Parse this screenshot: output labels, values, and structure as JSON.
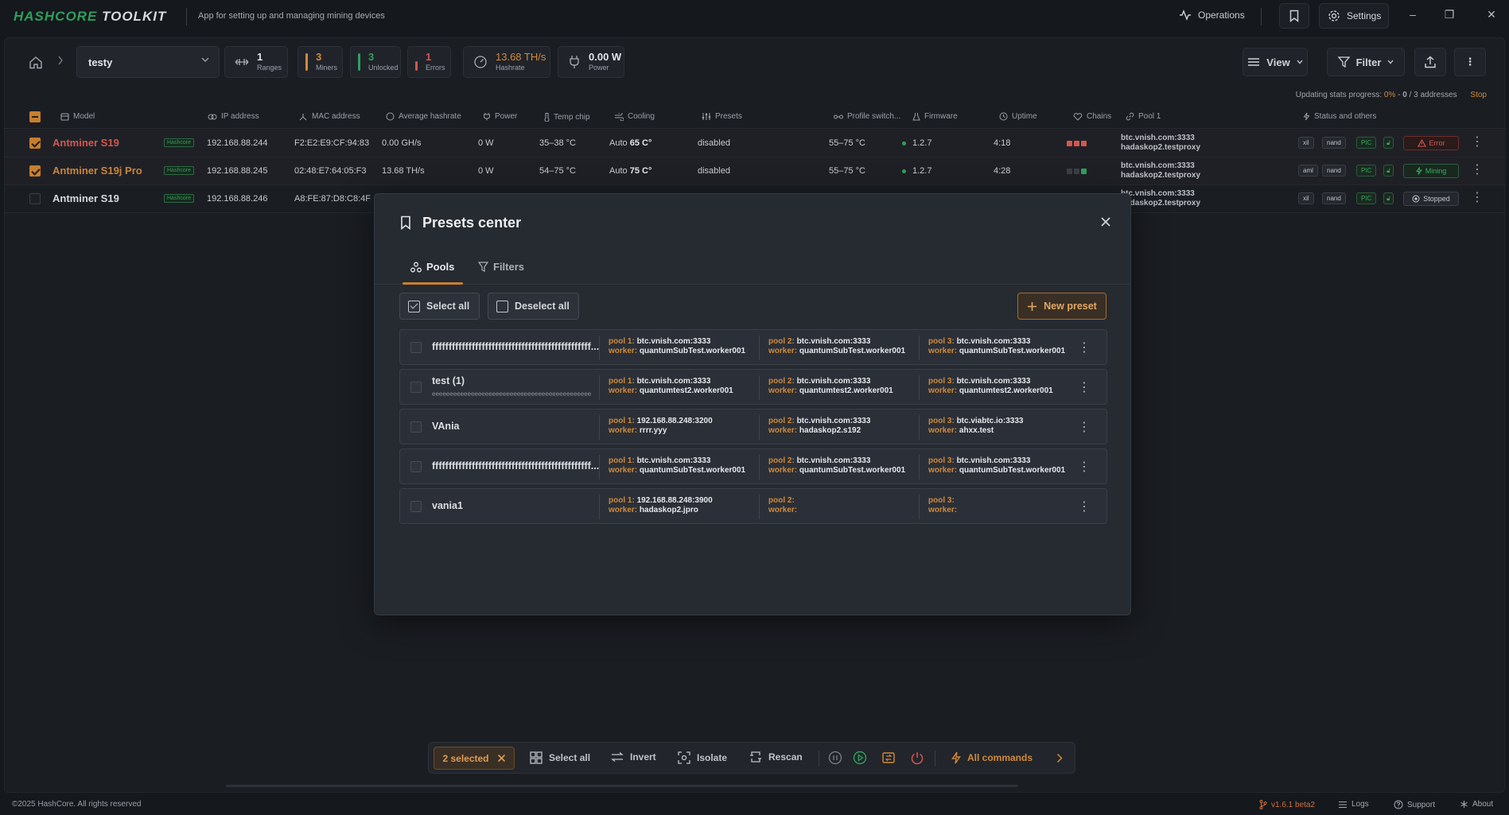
{
  "app": {
    "logo_main": "HASHCORE",
    "logo_suffix": "TOOLKIT",
    "tagline": "App for setting up and managing mining devices",
    "operations_label": "Operations",
    "settings_label": "Settings"
  },
  "toolbar": {
    "group_name": "testy",
    "stats": [
      {
        "value": "1",
        "label": "Ranges",
        "color": "#9aa0a8"
      },
      {
        "value": "3",
        "label": "Miners",
        "color": "#d08a3a"
      },
      {
        "value": "3",
        "label": "Unlocked",
        "color": "#2fa05a"
      },
      {
        "value": "1",
        "label": "Errors",
        "color": "#d1584f"
      }
    ],
    "hashrate_value": "13.68 TH/s",
    "hashrate_label": "Hashrate",
    "power_value": "0.00 W",
    "power_label": "Power",
    "view_label": "View",
    "filter_label": "Filter"
  },
  "progress": {
    "prefix": "Updating stats progress:",
    "percent": "0%",
    "count": "0",
    "total": "/ 3 addresses",
    "stop_label": "Stop"
  },
  "table": {
    "headers": {
      "model": "Model",
      "ip": "IP address",
      "mac": "MAC address",
      "hashrate": "Average hashrate",
      "power": "Power",
      "temp": "Temp chip",
      "cooling": "Cooling",
      "presets": "Presets",
      "profile": "Profile switch...",
      "firmware": "Firmware",
      "uptime": "Uptime",
      "chains": "Chains",
      "pool1": "Pool 1",
      "status": "Status and others"
    },
    "rows": [
      {
        "checked": true,
        "model": "Antminer S19",
        "badge": "Hashcore",
        "ip": "192.168.88.244",
        "mac": "F2:E2:E9:CF:94:83",
        "hashrate": "0.00 GH/s",
        "power": "0 W",
        "temp": "35–38 °C",
        "cooling_mode": "Auto",
        "cooling_temp": "65 C°",
        "presets": "disabled",
        "profile": "55–75 °C",
        "firmware": "1.2.7",
        "uptime": "4:18",
        "pool_url": "btc.vnish.com:3333",
        "pool_worker": "hadaskop2.testproxy",
        "tag1": "xil",
        "tag2": "nand",
        "tag3": "PIC",
        "status": "Error"
      },
      {
        "checked": true,
        "model": "Antminer S19j Pro",
        "badge": "Hashcore",
        "ip": "192.168.88.245",
        "mac": "02:48:E7:64:05:F3",
        "hashrate": "13.68 TH/s",
        "power": "0 W",
        "temp": "54–75 °C",
        "cooling_mode": "Auto",
        "cooling_temp": "75 C°",
        "presets": "disabled",
        "profile": "55–75 °C",
        "firmware": "1.2.7",
        "uptime": "4:28",
        "pool_url": "btc.vnish.com:3333",
        "pool_worker": "hadaskop2.testproxy",
        "tag1": "aml",
        "tag2": "nand",
        "tag3": "PIC",
        "status": "Mining"
      },
      {
        "checked": false,
        "model": "Antminer S19",
        "badge": "Hashcore",
        "ip": "192.168.88.246",
        "mac": "A8:FE:87:D8:C8:4F",
        "pool_url": "btc.vnish.com:3333",
        "pool_worker": "hadaskop2.testproxy",
        "tag1": "xil",
        "tag2": "nand",
        "tag3": "PIC",
        "status": "Stopped"
      }
    ]
  },
  "modal": {
    "title": "Presets center",
    "tabs": [
      "Pools",
      "Filters"
    ],
    "select_all": "Select all",
    "deselect_all": "Deselect all",
    "new_preset": "New preset",
    "presets": [
      {
        "name": "ffffffffffffffffffffffffffffffffffffffffffffffff...",
        "sub": "",
        "pools": [
          {
            "label": "pool 1:",
            "url": "btc.vnish.com:3333",
            "worker_label": "worker:",
            "worker": "quantumSubTest.worker001"
          },
          {
            "label": "pool 2:",
            "url": "btc.vnish.com:3333",
            "worker_label": "worker:",
            "worker": "quantumSubTest.worker001"
          },
          {
            "label": "pool 3:",
            "url": "btc.vnish.com:3333",
            "worker_label": "worker:",
            "worker": "quantumSubTest.worker001"
          }
        ]
      },
      {
        "name": "test (1)",
        "sub": "eeeeeeeeeeeeeeeeeeeeeeeeeeeeeeeeeeeeeeeeeeeeeeeeeeeeeeeee...",
        "pools": [
          {
            "label": "pool 1:",
            "url": "btc.vnish.com:3333",
            "worker_label": "worker:",
            "worker": "quantumtest2.worker001"
          },
          {
            "label": "pool 2:",
            "url": "btc.vnish.com:3333",
            "worker_label": "worker:",
            "worker": "quantumtest2.worker001"
          },
          {
            "label": "pool 3:",
            "url": "btc.vnish.com:3333",
            "worker_label": "worker:",
            "worker": "quantumtest2.worker001"
          }
        ]
      },
      {
        "name": "VAnia",
        "sub": "",
        "pools": [
          {
            "label": "pool 1:",
            "url": "192.168.88.248:3200",
            "worker_label": "worker:",
            "worker": "rrrr.yyy"
          },
          {
            "label": "pool 2:",
            "url": "btc.vnish.com:3333",
            "worker_label": "worker:",
            "worker": "hadaskop2.s192"
          },
          {
            "label": "pool 3:",
            "url": "btc.viabtc.io:3333",
            "worker_label": "worker:",
            "worker": "ahxx.test"
          }
        ]
      },
      {
        "name": "ffffffffffffffffffffffffffffffffffffffffffffffff...",
        "sub": "",
        "pools": [
          {
            "label": "pool 1:",
            "url": "btc.vnish.com:3333",
            "worker_label": "worker:",
            "worker": "quantumSubTest.worker001"
          },
          {
            "label": "pool 2:",
            "url": "btc.vnish.com:3333",
            "worker_label": "worker:",
            "worker": "quantumSubTest.worker001"
          },
          {
            "label": "pool 3:",
            "url": "btc.vnish.com:3333",
            "worker_label": "worker:",
            "worker": "quantumSubTest.worker001"
          }
        ]
      },
      {
        "name": "vania1",
        "sub": "",
        "pools": [
          {
            "label": "pool 1:",
            "url": "192.168.88.248:3900",
            "worker_label": "worker:",
            "worker": "hadaskop2.jpro"
          },
          {
            "label": "pool 2:",
            "url": "",
            "worker_label": "worker:",
            "worker": ""
          },
          {
            "label": "pool 3:",
            "url": "",
            "worker_label": "worker:",
            "worker": ""
          }
        ]
      }
    ]
  },
  "actionbar": {
    "selected": "2 selected",
    "select_all": "Select all",
    "invert": "Invert",
    "isolate": "Isolate",
    "rescan": "Rescan",
    "all_commands": "All commands"
  },
  "footer": {
    "copyright": "©2025 HashCore. All rights reserved",
    "version": "v1.6.1 beta2",
    "logs": "Logs",
    "support": "Support",
    "about": "About"
  },
  "colors": {
    "accent": "#c8802f",
    "success": "#2fa05a",
    "error": "#d1584f"
  }
}
